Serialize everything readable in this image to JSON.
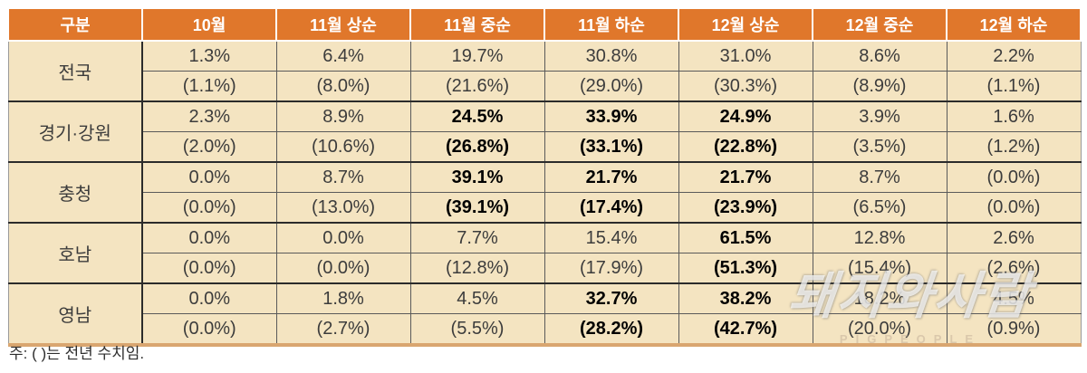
{
  "colors": {
    "header_bg": "#E0772B",
    "header_text": "#FFFFFF",
    "cell_bg": "#F4E4C1",
    "text_color": "#3C3C3C",
    "bold_text": "#000000",
    "border_dark": "#2B2B2B",
    "border_mid": "#5A5A5A",
    "bottom_bar": "#D9A670"
  },
  "note": "주: ( )는 전년 수치임.",
  "watermark": {
    "text": "돼지와사람",
    "subtext": "PIGPEOPLE"
  },
  "chart_data": {
    "type": "table",
    "columns": [
      "구분",
      "10월",
      "11월 상순",
      "11월 중순",
      "11월 하순",
      "12월 상순",
      "12월 중순",
      "12월 하순"
    ],
    "rows": [
      {
        "label": "전국",
        "current": [
          "1.3%",
          "6.4%",
          "19.7%",
          "30.8%",
          "31.0%",
          "8.6%",
          "2.2%"
        ],
        "previous": [
          "(1.1%)",
          "(8.0%)",
          "(21.6%)",
          "(29.0%)",
          "(30.3%)",
          "(8.9%)",
          "(1.1%)"
        ],
        "bold_cols": []
      },
      {
        "label": "경기·강원",
        "current": [
          "2.3%",
          "8.9%",
          "24.5%",
          "33.9%",
          "24.9%",
          "3.9%",
          "1.6%"
        ],
        "previous": [
          "(2.0%)",
          "(10.6%)",
          "(26.8%)",
          "(33.1%)",
          "(22.8%)",
          "(3.5%)",
          "(1.2%)"
        ],
        "bold_cols": [
          2,
          3,
          4
        ]
      },
      {
        "label": "충청",
        "current": [
          "0.0%",
          "8.7%",
          "39.1%",
          "21.7%",
          "21.7%",
          "8.7%",
          "(0.0%)"
        ],
        "previous": [
          "(0.0%)",
          "(13.0%)",
          "(39.1%)",
          "(17.4%)",
          "(23.9%)",
          "(6.5%)",
          "(0.0%)"
        ],
        "bold_cols": [
          2,
          3,
          4
        ]
      },
      {
        "label": "호남",
        "current": [
          "0.0%",
          "0.0%",
          "7.7%",
          "15.4%",
          "61.5%",
          "12.8%",
          "2.6%"
        ],
        "previous": [
          "(0.0%)",
          "(0.0%)",
          "(12.8%)",
          "(17.9%)",
          "(51.3%)",
          "(15.4%)",
          "(2.6%)"
        ],
        "bold_cols": [
          4
        ]
      },
      {
        "label": "영남",
        "current": [
          "0.0%",
          "1.8%",
          "4.5%",
          "32.7%",
          "38.2%",
          "18.2%",
          "4.5%"
        ],
        "previous": [
          "(0.0%)",
          "(2.7%)",
          "(5.5%)",
          "(28.2%)",
          "(42.7%)",
          "(20.0%)",
          "(0.9%)"
        ],
        "bold_cols": [
          3,
          4
        ]
      }
    ]
  }
}
